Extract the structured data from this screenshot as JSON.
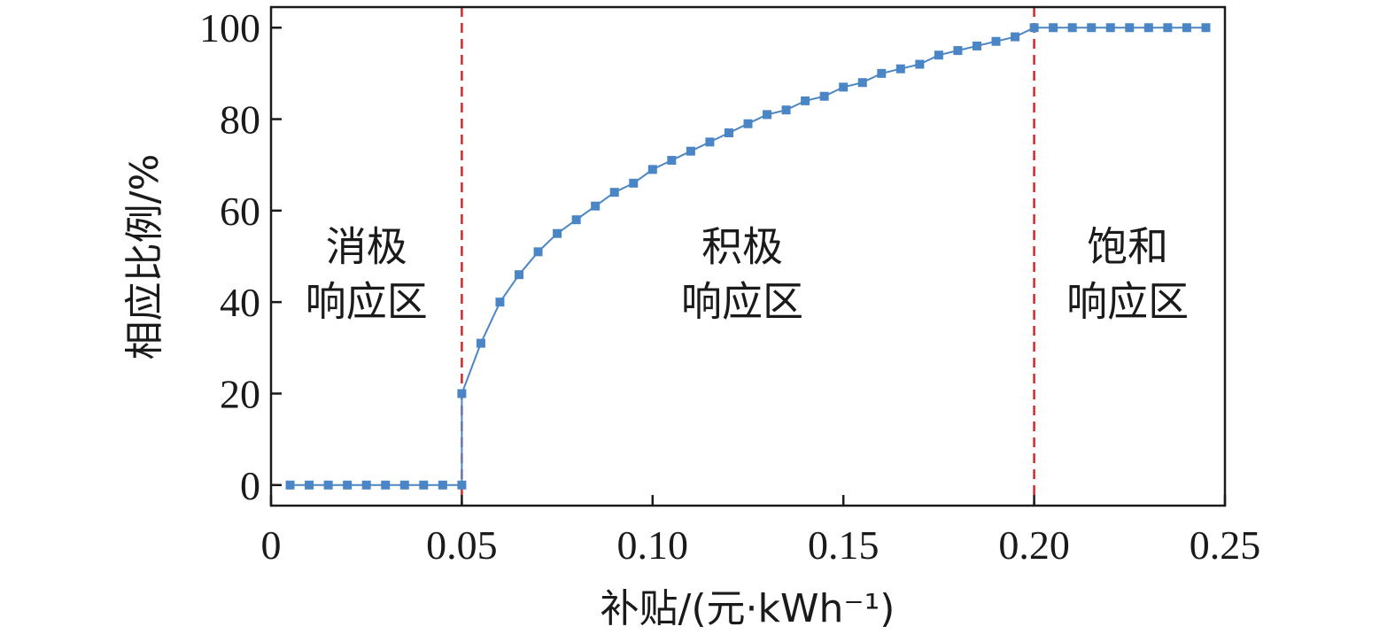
{
  "chart_data": {
    "type": "line",
    "xlabel": "补贴/(元·kWh⁻¹)",
    "ylabel": "相应比例/%",
    "xlim": [
      0,
      0.25
    ],
    "ylim": [
      -4.5,
      104.5
    ],
    "xticks": [
      0,
      0.05,
      0.1,
      0.15,
      0.2,
      0.25
    ],
    "xtick_labels": [
      "0",
      "0.05",
      "0.10",
      "0.15",
      "0.20",
      "0.25"
    ],
    "yticks": [
      0,
      20,
      40,
      60,
      80,
      100
    ],
    "ytick_labels": [
      "0",
      "20",
      "40",
      "60",
      "80",
      "100"
    ],
    "grid": false,
    "series": [
      {
        "color": "#4a86c5",
        "marker": "square",
        "x": [
          0.005,
          0.01,
          0.015,
          0.02,
          0.025,
          0.03,
          0.035,
          0.04,
          0.045,
          0.05,
          0.05,
          0.055,
          0.06,
          0.065,
          0.07,
          0.075,
          0.08,
          0.085,
          0.09,
          0.095,
          0.1,
          0.105,
          0.11,
          0.115,
          0.12,
          0.125,
          0.13,
          0.135,
          0.14,
          0.145,
          0.15,
          0.155,
          0.16,
          0.165,
          0.17,
          0.175,
          0.18,
          0.185,
          0.19,
          0.195,
          0.2,
          0.205,
          0.21,
          0.215,
          0.22,
          0.225,
          0.23,
          0.235,
          0.24,
          0.245
        ],
        "y": [
          0,
          0,
          0,
          0,
          0,
          0,
          0,
          0,
          0,
          0,
          20,
          31,
          40,
          46,
          51,
          55,
          58,
          61,
          64,
          66,
          69,
          71,
          73,
          75,
          77,
          79,
          81,
          82,
          84,
          85,
          87,
          88,
          90,
          91,
          92,
          94,
          95,
          96,
          97,
          98,
          100,
          100,
          100,
          100,
          100,
          100,
          100,
          100,
          100,
          100
        ]
      }
    ],
    "thresholds": {
      "values": [
        0.05,
        0.2
      ],
      "color": "#d62728"
    },
    "regions": [
      {
        "lines": [
          "消极",
          "响应区"
        ],
        "x_center": 0.025,
        "y_top_line": 49
      },
      {
        "lines": [
          "积极",
          "响应区"
        ],
        "x_center": 0.1235,
        "y_top_line": 49
      },
      {
        "lines": [
          "饱和",
          "响应区"
        ],
        "x_center": 0.2245,
        "y_top_line": 49
      }
    ]
  }
}
